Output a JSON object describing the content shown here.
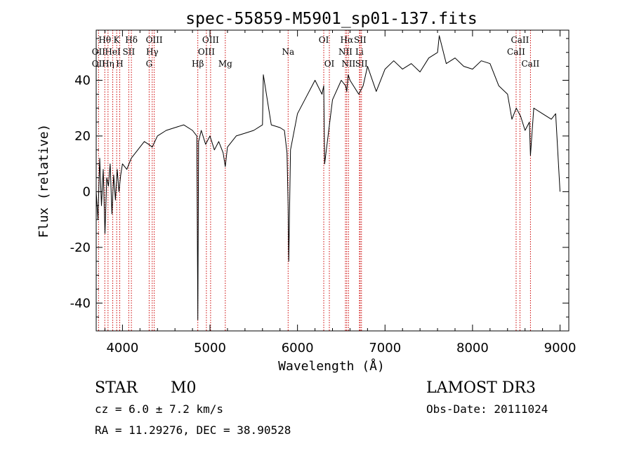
{
  "chart_data": {
    "type": "line",
    "title": "spec-55859-M5901_sp01-137.fits",
    "xlabel": "Wavelength (Å)",
    "ylabel": "Flux (relative)",
    "xlim": [
      3700,
      9100
    ],
    "ylim": [
      -50,
      58
    ],
    "x_ticks": [
      4000,
      5000,
      6000,
      7000,
      8000,
      9000
    ],
    "y_ticks": [
      -40,
      -20,
      0,
      20,
      40
    ],
    "grid": false,
    "series": [
      {
        "name": "flux",
        "x": [
          3700,
          3720,
          3740,
          3760,
          3780,
          3800,
          3820,
          3840,
          3860,
          3880,
          3900,
          3920,
          3940,
          3960,
          3980,
          4000,
          4050,
          4100,
          4150,
          4200,
          4250,
          4300,
          4340,
          4400,
          4500,
          4600,
          4700,
          4800,
          4850,
          4861,
          4870,
          4900,
          4950,
          5000,
          5050,
          5100,
          5150,
          5175,
          5200,
          5300,
          5400,
          5500,
          5600,
          5610,
          5700,
          5800,
          5850,
          5880,
          5893,
          5900,
          5920,
          6000,
          6100,
          6200,
          6280,
          6300,
          6310,
          6400,
          6500,
          6550,
          6563,
          6580,
          6600,
          6700,
          6750,
          6800,
          6900,
          7000,
          7100,
          7200,
          7300,
          7400,
          7500,
          7600,
          7620,
          7700,
          7800,
          7900,
          8000,
          8100,
          8200,
          8300,
          8400,
          8450,
          8500,
          8550,
          8600,
          8650,
          8662,
          8700,
          8800,
          8900,
          8950,
          9000
        ],
        "values": [
          0,
          -10,
          12,
          -5,
          8,
          -15,
          5,
          2,
          10,
          -8,
          6,
          -3,
          8,
          0,
          6,
          10,
          8,
          12,
          14,
          16,
          18,
          17,
          16,
          20,
          22,
          23,
          24,
          22,
          20,
          -46,
          18,
          22,
          17,
          20,
          15,
          18,
          14,
          9,
          16,
          20,
          21,
          22,
          24,
          42,
          24,
          23,
          22,
          14,
          -5,
          -25,
          15,
          28,
          34,
          40,
          35,
          38,
          10,
          33,
          40,
          38,
          36,
          42,
          40,
          35,
          38,
          45,
          36,
          44,
          47,
          44,
          46,
          43,
          48,
          50,
          56,
          46,
          48,
          45,
          44,
          47,
          46,
          38,
          35,
          26,
          30,
          27,
          22,
          25,
          13,
          30,
          28,
          26,
          28,
          0
        ]
      }
    ],
    "lines": [
      {
        "name": "Hθ",
        "wavelength": 3798,
        "row": 1
      },
      {
        "name": "OII",
        "wavelength": 3727,
        "row": 2
      },
      {
        "name": "OII",
        "wavelength": 3727,
        "row": 3
      },
      {
        "name": "Hη",
        "wavelength": 3835,
        "row": 3
      },
      {
        "name": "K",
        "wavelength": 3934,
        "row": 1
      },
      {
        "name": "HeI",
        "wavelength": 3889,
        "row": 2
      },
      {
        "name": "H",
        "wavelength": 3969,
        "row": 3
      },
      {
        "name": "Hδ",
        "wavelength": 4102,
        "row": 1
      },
      {
        "name": "SII",
        "wavelength": 4072,
        "row": 2
      },
      {
        "name": "OIII",
        "wavelength": 4363,
        "row": 1
      },
      {
        "name": "Hγ",
        "wavelength": 4340,
        "row": 2
      },
      {
        "name": "G",
        "wavelength": 4305,
        "row": 3
      },
      {
        "name": "Hβ",
        "wavelength": 4861,
        "row": 3
      },
      {
        "name": "OIII",
        "wavelength": 5007,
        "row": 1
      },
      {
        "name": "OIII",
        "wavelength": 4959,
        "row": 2
      },
      {
        "name": "Mg",
        "wavelength": 5175,
        "row": 3
      },
      {
        "name": "Na",
        "wavelength": 5893,
        "row": 2
      },
      {
        "name": "OI",
        "wavelength": 6300,
        "row": 1
      },
      {
        "name": "OI",
        "wavelength": 6364,
        "row": 3
      },
      {
        "name": "Hα",
        "wavelength": 6563,
        "row": 1
      },
      {
        "name": "NII",
        "wavelength": 6548,
        "row": 2
      },
      {
        "name": "NII",
        "wavelength": 6583,
        "row": 3
      },
      {
        "name": "SII",
        "wavelength": 6716,
        "row": 1
      },
      {
        "name": "Li",
        "wavelength": 6708,
        "row": 2
      },
      {
        "name": "SII",
        "wavelength": 6731,
        "row": 3
      },
      {
        "name": "CaII",
        "wavelength": 8542,
        "row": 1
      },
      {
        "name": "CaII",
        "wavelength": 8498,
        "row": 2
      },
      {
        "name": "CaII",
        "wavelength": 8662,
        "row": 3
      }
    ]
  },
  "info": {
    "object_type": "STAR",
    "subclass": "M0",
    "survey": "LAMOST DR3",
    "cz": "cz = 6.0 ± 7.2 km/s",
    "obs_date": "Obs-Date: 20111024",
    "coords": "RA =  11.29276, DEC =  38.90528"
  },
  "colors": {
    "spectrum": "#000000",
    "line_markers": "#cc0000",
    "axes": "#000000"
  }
}
